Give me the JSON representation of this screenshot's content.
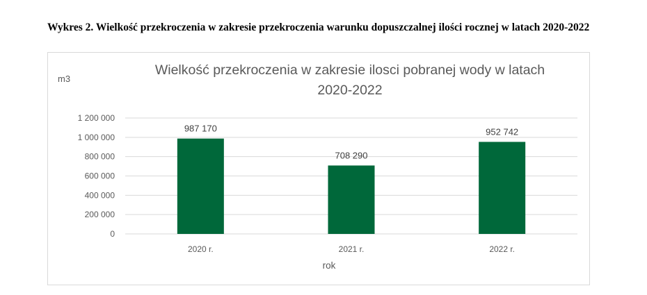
{
  "caption": "Wykres 2. Wielkość przekroczenia w zakresie przekroczenia warunku dopuszczalnej ilości rocznej w latach 2020-2022",
  "chart_data": {
    "type": "bar",
    "title": [
      "Wielkość przekroczenia w zakresie ilosci pobranej wody w latach",
      "2020-2022"
    ],
    "ylabel": "m3",
    "xlabel": "rok",
    "categories": [
      "2020 r.",
      "2021 r.",
      "2022 r."
    ],
    "values": [
      987170,
      708290,
      952742
    ],
    "data_labels": [
      "987 170",
      "708 290",
      "952 742"
    ],
    "ylim": [
      0,
      1200000
    ],
    "yticks": [
      0,
      200000,
      400000,
      600000,
      800000,
      1000000,
      1200000
    ],
    "ytick_labels": [
      "0",
      "200 000",
      "400 000",
      "600 000",
      "800 000",
      "1 000 000",
      "1 200 000"
    ],
    "grid": true,
    "bar_color": "#00683a",
    "grid_color": "#d9d9d9"
  }
}
